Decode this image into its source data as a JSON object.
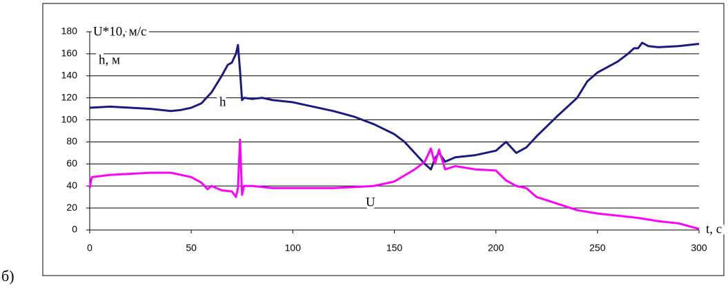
{
  "chart_data": {
    "type": "line",
    "panel_label": "б)",
    "x_label": "t, c",
    "y_labels": [
      "U*10, м/с",
      "h, м"
    ],
    "annotations": [
      "h",
      "U"
    ],
    "xlim": [
      0,
      300
    ],
    "xticks": [
      0,
      50,
      100,
      150,
      200,
      250,
      300
    ],
    "ylim": [
      0,
      180
    ],
    "yticks": [
      0,
      20,
      40,
      60,
      80,
      100,
      120,
      140,
      160,
      180
    ],
    "grid": true,
    "series": [
      {
        "name": "h",
        "color": "#1a1a80",
        "x": [
          0,
          10,
          20,
          30,
          40,
          45,
          50,
          55,
          60,
          65,
          68,
          70,
          72,
          73,
          74,
          75,
          76,
          80,
          85,
          90,
          100,
          110,
          120,
          130,
          140,
          150,
          155,
          160,
          165,
          168,
          170,
          172,
          175,
          180,
          190,
          200,
          205,
          210,
          215,
          220,
          230,
          240,
          245,
          250,
          255,
          260,
          265,
          268,
          270,
          272,
          275,
          280,
          290,
          300
        ],
        "values": [
          111,
          112,
          111,
          110,
          108,
          109,
          111,
          115,
          125,
          140,
          150,
          152,
          160,
          168,
          145,
          118,
          120,
          119,
          120,
          118,
          116,
          112,
          108,
          103,
          96,
          87,
          80,
          70,
          60,
          55,
          65,
          70,
          62,
          66,
          68,
          72,
          80,
          70,
          75,
          85,
          103,
          120,
          135,
          143,
          148,
          153,
          160,
          165,
          165,
          170,
          167,
          166,
          167,
          169
        ]
      },
      {
        "name": "U",
        "color": "#ff00ff",
        "x": [
          0,
          1,
          10,
          20,
          30,
          40,
          50,
          55,
          58,
          60,
          65,
          70,
          72,
          73,
          74,
          75,
          76,
          80,
          90,
          100,
          110,
          120,
          130,
          140,
          150,
          160,
          165,
          168,
          170,
          172,
          175,
          180,
          190,
          200,
          205,
          210,
          215,
          220,
          230,
          240,
          250,
          260,
          270,
          280,
          290,
          300
        ],
        "values": [
          38,
          48,
          50,
          51,
          52,
          52,
          48,
          43,
          37,
          40,
          36,
          35,
          30,
          38,
          82,
          32,
          40,
          40,
          38,
          38,
          38,
          38,
          39,
          40,
          44,
          55,
          62,
          74,
          60,
          73,
          55,
          58,
          55,
          54,
          45,
          40,
          38,
          30,
          24,
          18,
          15,
          13,
          11,
          8,
          6,
          1
        ]
      }
    ]
  }
}
